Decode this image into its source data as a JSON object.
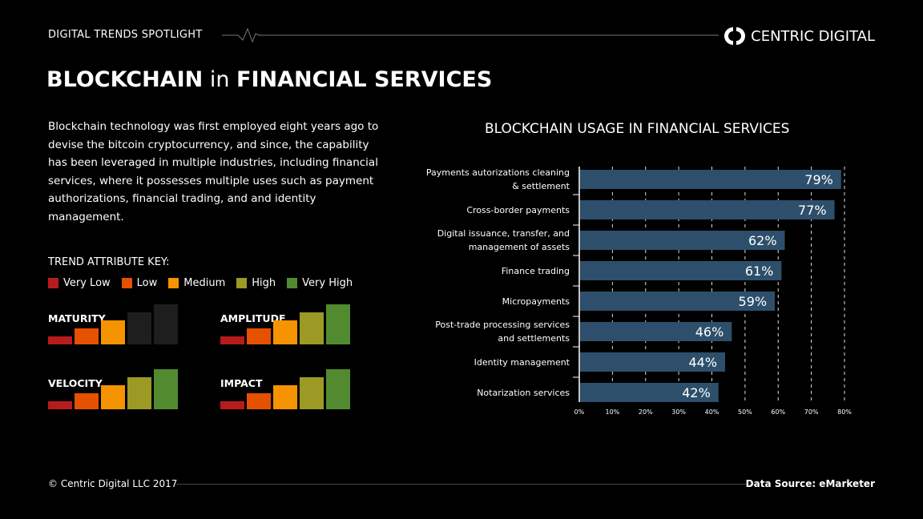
{
  "header": {
    "kicker": "DIGITAL TRENDS SPOTLIGHT",
    "brand": "CENTRIC DIGITAL"
  },
  "title": {
    "bold1": "BLOCKCHAIN",
    "thin": " in ",
    "bold2": "FINANCIAL SERVICES"
  },
  "intro": "Blockchain technology was first employed eight years ago to devise the bitcoin cryptocurrency, and since, the capability has been leveraged in multiple industries, including financial services, where it possesses multiple uses such as payment authorizations, financial trading, and and identity management.",
  "key": {
    "heading": "TREND ATTRIBUTE KEY:",
    "levels": [
      {
        "label": "Very Low",
        "color": "#b71c1c"
      },
      {
        "label": "Low",
        "color": "#e65100"
      },
      {
        "label": "Medium",
        "color": "#f59300"
      },
      {
        "label": "High",
        "color": "#9a9a24"
      },
      {
        "label": "Very High",
        "color": "#528a30"
      }
    ],
    "inactive_color": "#1e1e1e"
  },
  "attributes": [
    {
      "name": "MATURITY",
      "level": 3
    },
    {
      "name": "AMPLITUDE",
      "level": 5
    },
    {
      "name": "VELOCITY",
      "level": 5
    },
    {
      "name": "IMPACT",
      "level": 5
    }
  ],
  "chart_data": {
    "type": "bar",
    "orientation": "horizontal",
    "title": "BLOCKCHAIN USAGE IN FINANCIAL SERVICES",
    "categories": [
      "Payments autorizations cleaning & settlement",
      "Cross-border payments",
      "Digital issuance, transfer, and management of assets",
      "Finance trading",
      "Micropayments",
      "Post-trade processing services and settlements",
      "Identity management",
      "Notarization services"
    ],
    "values": [
      79,
      77,
      62,
      61,
      59,
      46,
      44,
      42
    ],
    "data_labels": [
      "79%",
      "77%",
      "62%",
      "61%",
      "59%",
      "46%",
      "44%",
      "42%"
    ],
    "xlim": [
      0,
      80
    ],
    "xticks": [
      "0%",
      "10%",
      "20%",
      "30%",
      "40%",
      "50%",
      "60%",
      "70%",
      "80%"
    ],
    "grid": "vertical dashed",
    "bar_color": "#2d4f6b"
  },
  "footer": {
    "copyright": "© Centric Digital LLC 2017",
    "source": "Data Source: eMarketer"
  }
}
